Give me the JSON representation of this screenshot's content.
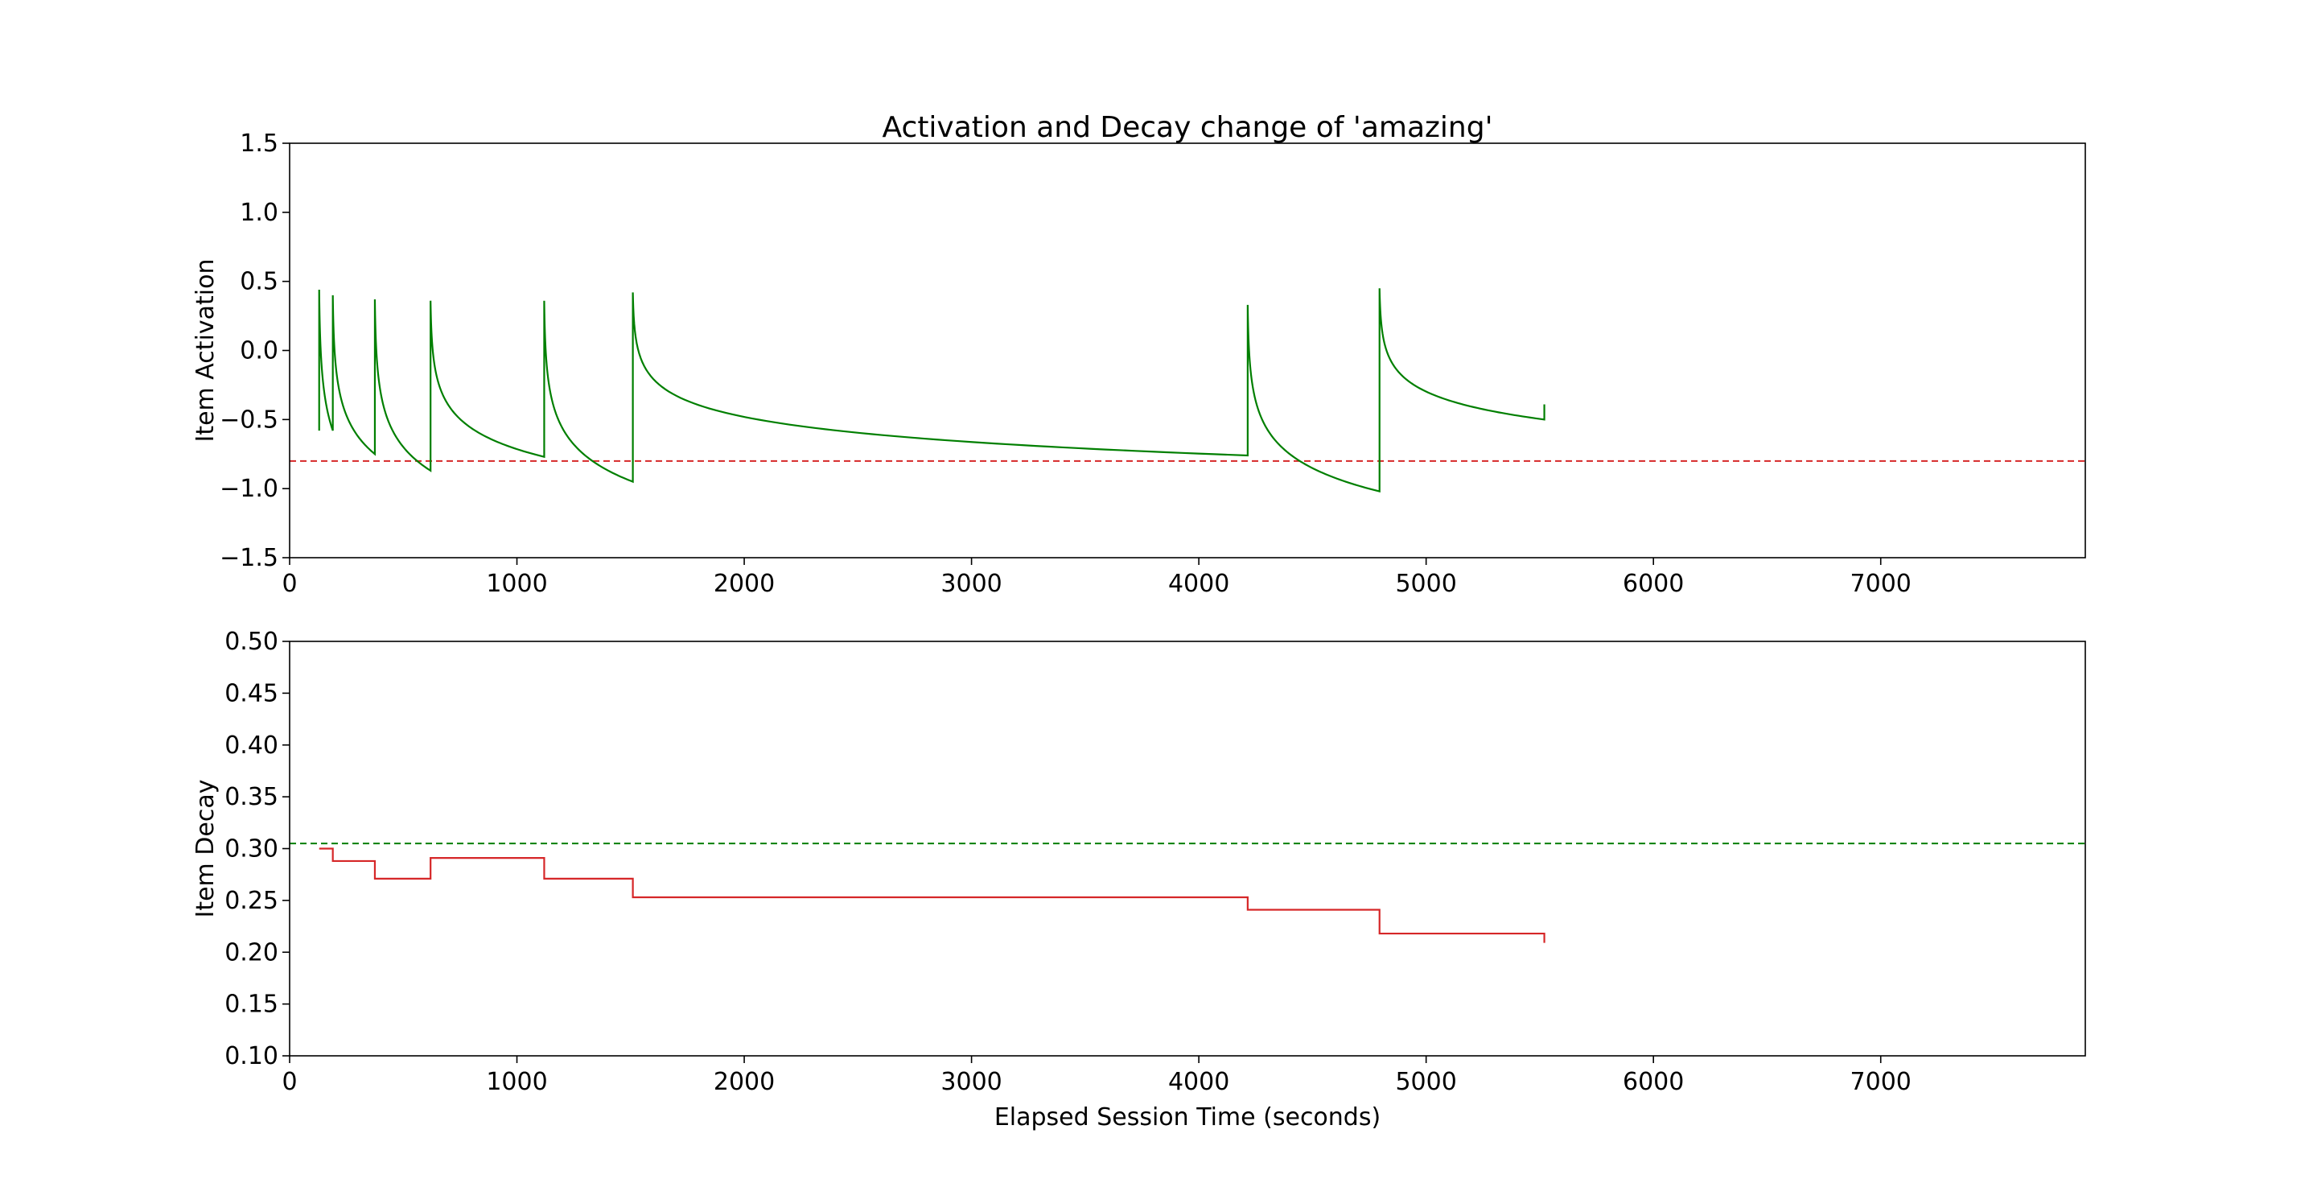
{
  "chart_data": [
    {
      "type": "line",
      "title": "Activation and Decay change of 'amazing'",
      "xlabel": "",
      "ylabel": "Item Activation",
      "xlim": [
        0,
        7900
      ],
      "ylim": [
        -1.5,
        1.5
      ],
      "x_ticks": [
        0,
        1000,
        2000,
        3000,
        4000,
        5000,
        6000,
        7000
      ],
      "y_ticks": [
        -1.5,
        -1.0,
        -0.5,
        0.0,
        0.5,
        1.0,
        1.5
      ],
      "y_tick_labels": [
        "−1.5",
        "−1.0",
        "−0.5",
        "0.0",
        "0.5",
        "1.0",
        "1.5"
      ],
      "grid": false,
      "threshold_line": {
        "y": -0.8,
        "style": "dashed",
        "color": "#d62728"
      },
      "series": [
        {
          "color": "#007f00",
          "encounters": [
            {
              "time": 130,
              "peak": 0.44,
              "start": 0.0,
              "end_before_next": -0.58
            },
            {
              "time": 190,
              "peak": 0.4,
              "start": null,
              "end_before_next": -0.75
            },
            {
              "time": 375,
              "peak": 0.37,
              "start": null,
              "end_before_next": -0.87
            },
            {
              "time": 620,
              "peak": 0.36,
              "start": null,
              "end_before_next": -0.77
            },
            {
              "time": 1120,
              "peak": 0.36,
              "start": null,
              "end_before_next": -0.95
            },
            {
              "time": 1510,
              "peak": 0.42,
              "start": null,
              "end_before_next": -0.76
            },
            {
              "time": 4215,
              "peak": 0.33,
              "start": null,
              "end_before_next": -1.02
            },
            {
              "time": 4795,
              "peak": 0.45,
              "start": null,
              "end_before_next": -0.73
            }
          ],
          "last_segment_end": {
            "time": 5520,
            "value": -0.5
          },
          "final_step": -0.39
        }
      ]
    },
    {
      "type": "line",
      "title": "",
      "xlabel": "Elapsed Session Time (seconds)",
      "ylabel": "Item Decay",
      "xlim": [
        0,
        7900
      ],
      "ylim": [
        0.1,
        0.5
      ],
      "x_ticks": [
        0,
        1000,
        2000,
        3000,
        4000,
        5000,
        6000,
        7000
      ],
      "y_ticks": [
        0.1,
        0.15,
        0.2,
        0.25,
        0.3,
        0.35,
        0.4,
        0.45,
        0.5
      ],
      "y_tick_labels": [
        "0.10",
        "0.15",
        "0.20",
        "0.25",
        "0.30",
        "0.35",
        "0.40",
        "0.45",
        "0.50"
      ],
      "grid": false,
      "threshold_line": {
        "y": 0.305,
        "style": "dashed",
        "color": "#007f00"
      },
      "series": [
        {
          "color": "#d62728",
          "steps": [
            [
              130,
              0.3
            ],
            [
              190,
              0.288
            ],
            [
              375,
              0.271
            ],
            [
              620,
              0.291
            ],
            [
              1120,
              0.271
            ],
            [
              1510,
              0.253
            ],
            [
              4215,
              0.241
            ],
            [
              4795,
              0.218
            ],
            [
              5520,
              0.218
            ]
          ],
          "final_step": 0.209
        }
      ]
    }
  ]
}
